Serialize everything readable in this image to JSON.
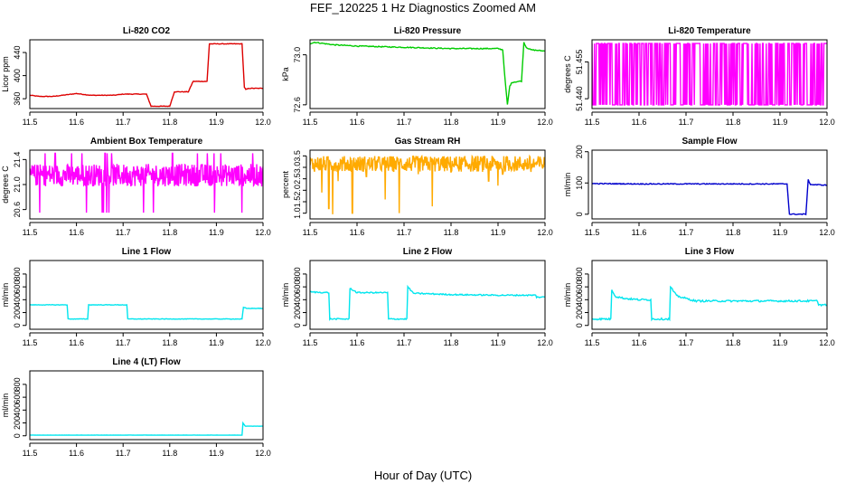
{
  "page": {
    "title": "FEF_120225  1 Hz Diagnostics Zoomed AM",
    "xlabel": "Hour of Day (UTC)"
  },
  "chart_data": [
    {
      "type": "line",
      "title": "Li-820 CO2",
      "ylabel": "Licor ppm",
      "xlim": [
        11.5,
        12.0
      ],
      "ylim": [
        343,
        462
      ],
      "xticks": [
        "11.5",
        "11.6",
        "11.7",
        "11.8",
        "11.9",
        "12.0"
      ],
      "yticks": [
        {
          "v": 360,
          "l": "360"
        },
        {
          "v": 400,
          "l": "400"
        },
        {
          "v": 440,
          "l": "440"
        }
      ],
      "grid": false,
      "series": [
        {
          "color": "#dd0000",
          "noise": 0.5,
          "x": [
            11.5,
            11.52,
            11.55,
            11.59,
            11.6,
            11.63,
            11.68,
            11.7,
            11.75,
            11.76,
            11.8,
            11.81,
            11.84,
            11.85,
            11.88,
            11.885,
            11.955,
            11.96,
            11.963,
            11.97,
            12.0
          ],
          "y": [
            366,
            364,
            364,
            368,
            369,
            366,
            366,
            368,
            368,
            347,
            347,
            372,
            372,
            390,
            390,
            455,
            455,
            380,
            376,
            378,
            378
          ]
        }
      ]
    },
    {
      "type": "line",
      "title": "Li-820 Pressure",
      "ylabel": "kPa",
      "xlim": [
        11.5,
        12.0
      ],
      "ylim": [
        72.57,
        73.12
      ],
      "xticks": [
        "11.5",
        "11.6",
        "11.7",
        "11.8",
        "11.9",
        "12.0"
      ],
      "yticks": [
        {
          "v": 72.6,
          "l": "72.6"
        },
        {
          "v": 73.0,
          "l": "73.0"
        }
      ],
      "grid": false,
      "series": [
        {
          "color": "#00cc00",
          "noise": 0.004,
          "x": [
            11.5,
            11.51,
            11.55,
            11.6,
            11.7,
            11.8,
            11.9,
            11.91,
            11.915,
            11.92,
            11.925,
            11.93,
            11.95,
            11.955,
            11.96,
            11.97,
            12.0
          ],
          "y": [
            73.09,
            73.1,
            73.08,
            73.07,
            73.06,
            73.05,
            73.05,
            73.04,
            72.8,
            72.6,
            72.75,
            72.78,
            72.79,
            73.1,
            73.06,
            73.04,
            73.03
          ]
        }
      ]
    },
    {
      "type": "line",
      "title": "Li-820 Temperature",
      "ylabel": "degrees C",
      "xlim": [
        11.5,
        12.0
      ],
      "ylim": [
        51.436,
        51.464
      ],
      "xticks": [
        "11.5",
        "11.6",
        "11.7",
        "11.8",
        "11.9",
        "12.0"
      ],
      "yticks": [
        {
          "v": 51.44,
          "l": "51.440"
        },
        {
          "v": 51.455,
          "l": "51.455"
        }
      ],
      "grid": false,
      "series": [
        {
          "color": "#ff00ff",
          "osc": {
            "low": 51.4375,
            "high": 51.4625,
            "n": 380
          }
        }
      ]
    },
    {
      "type": "line",
      "title": "Ambient Box Temperature",
      "ylabel": "degrees C",
      "xlim": [
        11.5,
        12.0
      ],
      "ylim": [
        20.45,
        21.55
      ],
      "xticks": [
        "11.5",
        "11.6",
        "11.7",
        "11.8",
        "11.9",
        "12.0"
      ],
      "yticks": [
        {
          "v": 20.6,
          "l": "20.6"
        },
        {
          "v": 21.0,
          "l": "21.0"
        },
        {
          "v": 21.4,
          "l": "21.4"
        }
      ],
      "grid": false,
      "series": [
        {
          "color": "#ff00ff",
          "band": {
            "center": 21.15,
            "width": 0.18,
            "n": 520,
            "spikes": 0.05,
            "spikeLow": 20.55,
            "spikeHigh": 21.5
          }
        }
      ]
    },
    {
      "type": "line",
      "title": "Gas Stream RH",
      "ylabel": "percent",
      "xlim": [
        11.5,
        12.0
      ],
      "ylim": [
        0.75,
        3.75
      ],
      "xticks": [
        "11.5",
        "11.6",
        "11.7",
        "11.8",
        "11.9",
        "12.0"
      ],
      "yticks": [
        {
          "v": 1.0,
          "l": "1.0"
        },
        {
          "v": 1.5,
          "l": "1.5"
        },
        {
          "v": 2.0,
          "l": "2.0"
        },
        {
          "v": 2.5,
          "l": "2.5"
        },
        {
          "v": 3.0,
          "l": "3.0"
        },
        {
          "v": 3.5,
          "l": "3.5"
        }
      ],
      "grid": false,
      "series": [
        {
          "color": "#ffaa00",
          "band": {
            "center": 3.15,
            "width": 0.35,
            "n": 520,
            "spikes": 0.0,
            "spikeLow": 1.0,
            "spikeHigh": 3.5
          },
          "dips": [
            [
              11.525,
              1.9
            ],
            [
              11.54,
              1.2
            ],
            [
              11.548,
              0.95
            ],
            [
              11.56,
              2.4
            ],
            [
              11.59,
              1.0
            ],
            [
              11.62,
              2.6
            ],
            [
              11.66,
              1.6
            ],
            [
              11.69,
              1.0
            ],
            [
              11.73,
              2.7
            ],
            [
              11.76,
              1.3
            ],
            [
              11.8,
              2.8
            ],
            [
              11.82,
              2.9
            ],
            [
              11.88,
              2.4
            ],
            [
              11.9,
              2.2
            ],
            [
              11.91,
              2.7
            ],
            [
              11.93,
              2.9
            ],
            [
              11.97,
              2.8
            ]
          ]
        }
      ]
    },
    {
      "type": "line",
      "title": "Sample Flow",
      "ylabel": "ml/min",
      "xlim": [
        11.5,
        12.0
      ],
      "ylim": [
        -15,
        205
      ],
      "xticks": [
        "11.5",
        "11.6",
        "11.7",
        "11.8",
        "11.9",
        "12.0"
      ],
      "yticks": [
        {
          "v": 0,
          "l": "0"
        },
        {
          "v": 100,
          "l": "100"
        },
        {
          "v": 200,
          "l": "200"
        }
      ],
      "grid": false,
      "series": [
        {
          "color": "#0000cc",
          "noise": 1.5,
          "x": [
            11.5,
            11.6,
            11.7,
            11.8,
            11.915,
            11.92,
            11.955,
            11.96,
            11.965,
            12.0
          ],
          "y": [
            98,
            97,
            97,
            97,
            97,
            0,
            0,
            110,
            95,
            93
          ]
        }
      ]
    },
    {
      "type": "line",
      "title": "Line 1 Flow",
      "ylabel": "ml/min",
      "xlim": [
        11.5,
        12.0
      ],
      "ylim": [
        -60,
        1010
      ],
      "xticks": [
        "11.5",
        "11.6",
        "11.7",
        "11.8",
        "11.9",
        "12.0"
      ],
      "yticks": [
        {
          "v": 0,
          "l": "0"
        },
        {
          "v": 200,
          "l": "200"
        },
        {
          "v": 400,
          "l": "400"
        },
        {
          "v": 600,
          "l": "600"
        },
        {
          "v": 800,
          "l": "800"
        }
      ],
      "grid": false,
      "series": [
        {
          "color": "#00e5ee",
          "noise": 4,
          "x": [
            11.5,
            11.58,
            11.582,
            11.624,
            11.626,
            11.708,
            11.71,
            11.955,
            11.958,
            11.965,
            12.0
          ],
          "y": [
            320,
            320,
            100,
            100,
            320,
            320,
            100,
            100,
            280,
            265,
            265
          ]
        }
      ]
    },
    {
      "type": "line",
      "title": "Line 2 Flow",
      "ylabel": "ml/min",
      "xlim": [
        11.5,
        12.0
      ],
      "ylim": [
        -60,
        1010
      ],
      "xticks": [
        "11.5",
        "11.6",
        "11.7",
        "11.8",
        "11.9",
        "12.0"
      ],
      "yticks": [
        {
          "v": 0,
          "l": "0"
        },
        {
          "v": 200,
          "l": "200"
        },
        {
          "v": 400,
          "l": "400"
        },
        {
          "v": 600,
          "l": "600"
        },
        {
          "v": 800,
          "l": "800"
        }
      ],
      "grid": false,
      "series": [
        {
          "color": "#00e5ee",
          "noise": 10,
          "x": [
            11.5,
            11.54,
            11.542,
            11.583,
            11.585,
            11.6,
            11.665,
            11.667,
            11.706,
            11.708,
            11.72,
            11.8,
            11.9,
            11.98,
            11.982,
            12.0
          ],
          "y": [
            520,
            510,
            100,
            100,
            580,
            510,
            510,
            100,
            100,
            600,
            500,
            480,
            470,
            470,
            440,
            440
          ]
        }
      ]
    },
    {
      "type": "line",
      "title": "Line 3 Flow",
      "ylabel": "ml/min",
      "xlim": [
        11.5,
        12.0
      ],
      "ylim": [
        -60,
        1010
      ],
      "xticks": [
        "11.5",
        "11.6",
        "11.7",
        "11.8",
        "11.9",
        "12.0"
      ],
      "yticks": [
        {
          "v": 0,
          "l": "0"
        },
        {
          "v": 200,
          "l": "200"
        },
        {
          "v": 400,
          "l": "400"
        },
        {
          "v": 600,
          "l": "600"
        },
        {
          "v": 800,
          "l": "800"
        }
      ],
      "grid": false,
      "series": [
        {
          "color": "#00e5ee",
          "noise": 14,
          "x": [
            11.5,
            11.54,
            11.542,
            11.55,
            11.57,
            11.6,
            11.625,
            11.627,
            11.665,
            11.667,
            11.68,
            11.72,
            11.8,
            11.9,
            11.98,
            11.982,
            12.0
          ],
          "y": [
            100,
            100,
            560,
            450,
            420,
            400,
            400,
            100,
            100,
            600,
            460,
            380,
            380,
            380,
            380,
            320,
            320
          ]
        }
      ]
    },
    {
      "type": "line",
      "title": "Line 4 (LT) Flow",
      "ylabel": "ml/min",
      "xlim": [
        11.5,
        12.0
      ],
      "ylim": [
        -60,
        1010
      ],
      "xticks": [
        "11.5",
        "11.6",
        "11.7",
        "11.8",
        "11.9",
        "12.0"
      ],
      "yticks": [
        {
          "v": 0,
          "l": "0"
        },
        {
          "v": 200,
          "l": "200"
        },
        {
          "v": 400,
          "l": "400"
        },
        {
          "v": 600,
          "l": "600"
        },
        {
          "v": 800,
          "l": "800"
        }
      ],
      "grid": false,
      "series": [
        {
          "color": "#00e5ee",
          "noise": 1,
          "x": [
            11.5,
            11.7,
            11.9,
            11.955,
            11.957,
            11.962,
            12.0
          ],
          "y": [
            10,
            10,
            10,
            10,
            200,
            150,
            150
          ]
        }
      ]
    }
  ]
}
